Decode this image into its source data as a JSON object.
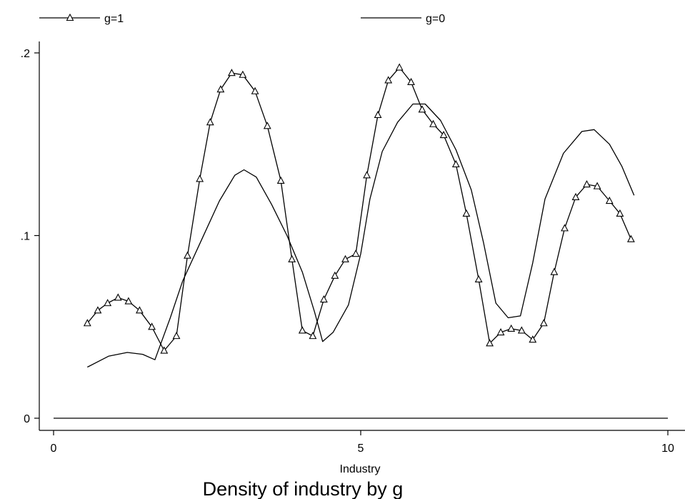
{
  "chart_data": {
    "type": "line",
    "title": "Density of industry by g",
    "xlabel": "Industry",
    "ylabel": "",
    "xlim": [
      0,
      10
    ],
    "ylim": [
      0,
      0.2
    ],
    "x_ticks": [
      {
        "value": 0,
        "label": "0"
      },
      {
        "value": 5,
        "label": "5"
      },
      {
        "value": 10,
        "label": "10"
      }
    ],
    "y_ticks": [
      {
        "value": 0,
        "label": "0"
      },
      {
        "value": 0.1,
        "label": ".1"
      },
      {
        "value": 0.2,
        "label": ".2"
      }
    ],
    "grid": false,
    "legend_position": "top",
    "series": [
      {
        "name": "g=1",
        "marker": "triangle",
        "color": "#000000",
        "points": [
          [
            0.55,
            0.052
          ],
          [
            0.72,
            0.059
          ],
          [
            0.88,
            0.063
          ],
          [
            1.05,
            0.066
          ],
          [
            1.22,
            0.064
          ],
          [
            1.4,
            0.059
          ],
          [
            1.6,
            0.05
          ],
          [
            1.8,
            0.037
          ],
          [
            2.0,
            0.045
          ],
          [
            2.18,
            0.089
          ],
          [
            2.38,
            0.131
          ],
          [
            2.55,
            0.162
          ],
          [
            2.72,
            0.18
          ],
          [
            2.9,
            0.189
          ],
          [
            3.08,
            0.188
          ],
          [
            3.28,
            0.179
          ],
          [
            3.48,
            0.16
          ],
          [
            3.7,
            0.13
          ],
          [
            3.88,
            0.087
          ],
          [
            4.05,
            0.048
          ],
          [
            4.22,
            0.045
          ],
          [
            4.4,
            0.065
          ],
          [
            4.58,
            0.078
          ],
          [
            4.75,
            0.087
          ],
          [
            4.92,
            0.09
          ],
          [
            5.1,
            0.133
          ],
          [
            5.28,
            0.166
          ],
          [
            5.45,
            0.185
          ],
          [
            5.63,
            0.192
          ],
          [
            5.82,
            0.184
          ],
          [
            6.0,
            0.169
          ],
          [
            6.18,
            0.161
          ],
          [
            6.35,
            0.155
          ],
          [
            6.55,
            0.139
          ],
          [
            6.72,
            0.112
          ],
          [
            6.92,
            0.076
          ],
          [
            7.1,
            0.041
          ],
          [
            7.28,
            0.047
          ],
          [
            7.45,
            0.049
          ],
          [
            7.62,
            0.048
          ],
          [
            7.8,
            0.043
          ],
          [
            7.98,
            0.052
          ],
          [
            8.15,
            0.08
          ],
          [
            8.32,
            0.104
          ],
          [
            8.5,
            0.121
          ],
          [
            8.68,
            0.128
          ],
          [
            8.85,
            0.127
          ],
          [
            9.05,
            0.119
          ],
          [
            9.22,
            0.112
          ],
          [
            9.4,
            0.098
          ]
        ]
      },
      {
        "name": "g=0",
        "marker": "none",
        "color": "#000000",
        "points": [
          [
            0.55,
            0.028
          ],
          [
            0.9,
            0.034
          ],
          [
            1.2,
            0.036
          ],
          [
            1.45,
            0.035
          ],
          [
            1.65,
            0.032
          ],
          [
            1.9,
            0.055
          ],
          [
            2.1,
            0.075
          ],
          [
            2.4,
            0.097
          ],
          [
            2.7,
            0.119
          ],
          [
            2.95,
            0.133
          ],
          [
            3.1,
            0.136
          ],
          [
            3.3,
            0.132
          ],
          [
            3.55,
            0.117
          ],
          [
            3.8,
            0.1
          ],
          [
            4.05,
            0.08
          ],
          [
            4.25,
            0.058
          ],
          [
            4.38,
            0.042
          ],
          [
            4.55,
            0.047
          ],
          [
            4.8,
            0.062
          ],
          [
            5.0,
            0.09
          ],
          [
            5.15,
            0.12
          ],
          [
            5.35,
            0.146
          ],
          [
            5.6,
            0.162
          ],
          [
            5.85,
            0.172
          ],
          [
            6.05,
            0.172
          ],
          [
            6.3,
            0.163
          ],
          [
            6.55,
            0.147
          ],
          [
            6.8,
            0.125
          ],
          [
            7.0,
            0.096
          ],
          [
            7.2,
            0.063
          ],
          [
            7.4,
            0.055
          ],
          [
            7.6,
            0.056
          ],
          [
            7.8,
            0.085
          ],
          [
            8.0,
            0.12
          ],
          [
            8.3,
            0.145
          ],
          [
            8.6,
            0.157
          ],
          [
            8.8,
            0.158
          ],
          [
            9.05,
            0.15
          ],
          [
            9.25,
            0.138
          ],
          [
            9.45,
            0.122
          ]
        ]
      }
    ],
    "reference_lines": [
      {
        "y": 0
      }
    ]
  }
}
